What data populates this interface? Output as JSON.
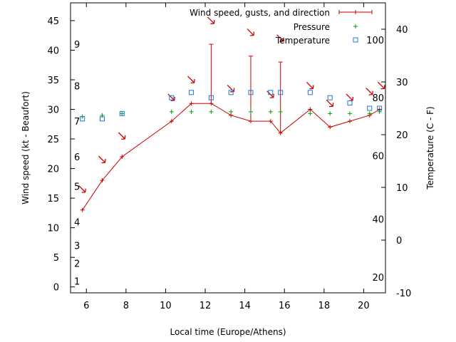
{
  "chart_data": {
    "type": "line",
    "xlabel": "Local time (Europe/Athens)",
    "ylabel": "Wind speed (kt - Beaufort)",
    "y2label": "Temperature (C - F)",
    "xlim": [
      5.2,
      21.1
    ],
    "ylim": [
      -1,
      48
    ],
    "y2lim": [
      -10,
      45
    ],
    "x_ticks": [
      6,
      8,
      10,
      12,
      14,
      16,
      18,
      20
    ],
    "y_ticks": [
      0,
      5,
      10,
      15,
      20,
      25,
      30,
      35,
      40,
      45
    ],
    "y2_ticks": [
      -10,
      0,
      10,
      20,
      30,
      40
    ],
    "beaufort_labels": [
      {
        "label": "1",
        "y": 1
      },
      {
        "label": "2",
        "y": 4
      },
      {
        "label": "3",
        "y": 7
      },
      {
        "label": "4",
        "y": 11
      },
      {
        "label": "5",
        "y": 17
      },
      {
        "label": "6",
        "y": 22
      },
      {
        "label": "7",
        "y": 28
      },
      {
        "label": "8",
        "y": 34
      },
      {
        "label": "9",
        "y": 41
      }
    ],
    "fahrenheit_labels": [
      {
        "label": "20",
        "y2": -7
      },
      {
        "label": "40",
        "y2": 4
      },
      {
        "label": "60",
        "y2": 16
      },
      {
        "label": "80",
        "y2": 27
      },
      {
        "label": "100",
        "y2": 38
      }
    ],
    "legend_position": "top-right",
    "series": [
      {
        "name": "Wind speed, gusts, and direction",
        "color": "#cc0000",
        "points": [
          {
            "x": 5.8,
            "y": 13
          },
          {
            "x": 6.8,
            "y": 18
          },
          {
            "x": 7.8,
            "y": 22
          },
          {
            "x": 10.3,
            "y": 28
          },
          {
            "x": 11.3,
            "y": 31
          },
          {
            "x": 12.3,
            "y": 31,
            "gust": 41
          },
          {
            "x": 13.3,
            "y": 29
          },
          {
            "x": 14.3,
            "y": 28,
            "gust": 39
          },
          {
            "x": 15.3,
            "y": 28
          },
          {
            "x": 15.8,
            "y": 26,
            "gust": 38
          },
          {
            "x": 17.3,
            "y": 30
          },
          {
            "x": 18.3,
            "y": 27
          },
          {
            "x": 19.3,
            "y": 28
          },
          {
            "x": 20.3,
            "y": 29
          },
          {
            "x": 20.8,
            "y": 30
          }
        ],
        "direction_arrows": [
          {
            "x": 5.8,
            "y": 16.5
          },
          {
            "x": 6.8,
            "y": 21.5
          },
          {
            "x": 7.8,
            "y": 25.5
          },
          {
            "x": 10.3,
            "y": 32
          },
          {
            "x": 11.3,
            "y": 35
          },
          {
            "x": 12.3,
            "y": 45
          },
          {
            "x": 13.3,
            "y": 33.5
          },
          {
            "x": 14.3,
            "y": 43
          },
          {
            "x": 15.3,
            "y": 32.5
          },
          {
            "x": 15.8,
            "y": 42
          },
          {
            "x": 17.3,
            "y": 34
          },
          {
            "x": 18.3,
            "y": 31
          },
          {
            "x": 19.3,
            "y": 32
          },
          {
            "x": 20.3,
            "y": 33
          },
          {
            "x": 20.9,
            "y": 34
          }
        ]
      },
      {
        "name": "Pressure",
        "color": "#00a000",
        "points": [
          {
            "x": 5.8,
            "y": 28.8
          },
          {
            "x": 6.8,
            "y": 29
          },
          {
            "x": 7.8,
            "y": 29.3
          },
          {
            "x": 10.3,
            "y": 29.6
          },
          {
            "x": 11.3,
            "y": 29.6
          },
          {
            "x": 12.3,
            "y": 29.6
          },
          {
            "x": 13.3,
            "y": 29.6
          },
          {
            "x": 14.3,
            "y": 29.6
          },
          {
            "x": 15.3,
            "y": 29.6
          },
          {
            "x": 15.8,
            "y": 29.6
          },
          {
            "x": 17.3,
            "y": 29.3
          },
          {
            "x": 18.3,
            "y": 29.3
          },
          {
            "x": 19.3,
            "y": 29.3
          },
          {
            "x": 20.3,
            "y": 29.3
          },
          {
            "x": 20.8,
            "y": 29.6
          }
        ]
      },
      {
        "name": "Temperature",
        "color": "#1f77d4",
        "points": [
          {
            "x": 5.8,
            "y": 23
          },
          {
            "x": 6.8,
            "y": 23
          },
          {
            "x": 7.8,
            "y": 24
          },
          {
            "x": 10.3,
            "y": 27
          },
          {
            "x": 11.3,
            "y": 28
          },
          {
            "x": 12.3,
            "y": 27
          },
          {
            "x": 13.3,
            "y": 28
          },
          {
            "x": 14.3,
            "y": 28
          },
          {
            "x": 15.3,
            "y": 28
          },
          {
            "x": 15.8,
            "y": 28
          },
          {
            "x": 17.3,
            "y": 28
          },
          {
            "x": 18.3,
            "y": 27
          },
          {
            "x": 19.3,
            "y": 26
          },
          {
            "x": 20.3,
            "y": 25
          },
          {
            "x": 20.8,
            "y": 25
          }
        ]
      }
    ]
  }
}
